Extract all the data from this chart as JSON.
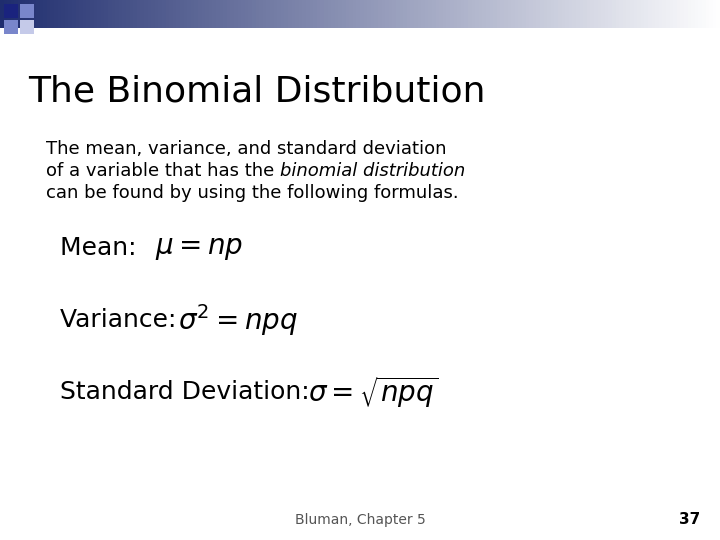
{
  "title": "The Binomial Distribution",
  "footer": "Bluman, Chapter 5",
  "page_num": "37",
  "bg_color": "#ffffff",
  "title_color": "#000000",
  "text_color": "#000000",
  "header_dark": "#1f2d6e",
  "header_mid": "#6a75b0",
  "header_light": "#c8cce8",
  "sq_dark": "#1a237e",
  "sq_mid": "#7986cb",
  "sq_light": "#c5cae9"
}
